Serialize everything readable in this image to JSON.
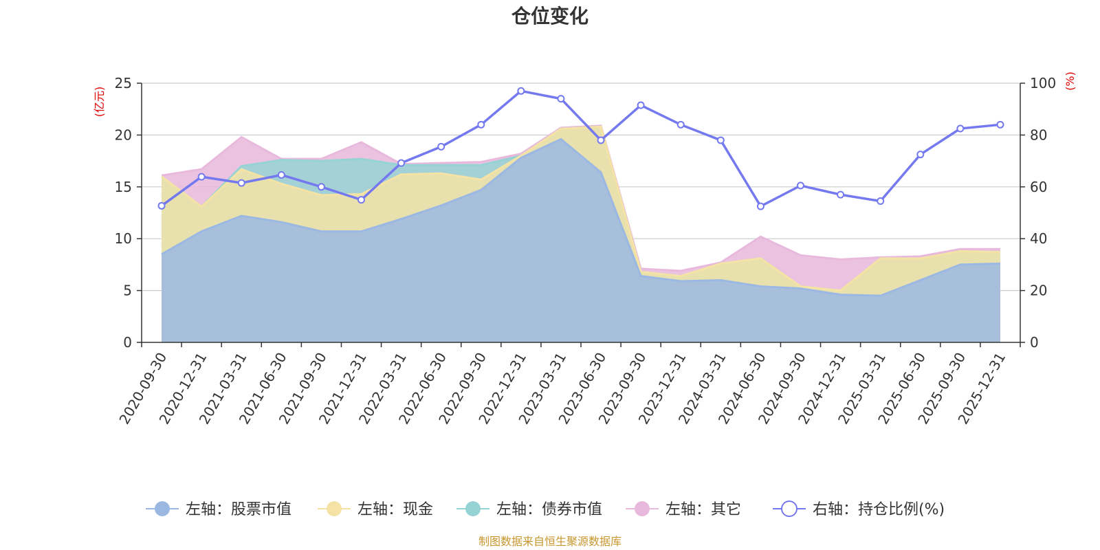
{
  "chart_data": {
    "type": "area",
    "title": "仓位变化",
    "left_axis_unit": "(亿元)",
    "right_axis_unit": "(%)",
    "categories": [
      "2020-09-30",
      "2020-12-31",
      "2021-03-31",
      "2021-06-30",
      "2021-09-30",
      "2021-12-31",
      "2022-03-31",
      "2022-06-30",
      "2022-09-30",
      "2022-12-31",
      "2023-03-31",
      "2023-06-30",
      "2023-09-30",
      "2023-12-31",
      "2024-03-31",
      "2024-06-30",
      "2024-09-30",
      "2024-12-31",
      "2025-03-31",
      "2025-06-30",
      "2025-09-30",
      "2025-12-31"
    ],
    "left_ylim": [
      0,
      25
    ],
    "left_ticks": [
      0,
      5,
      10,
      15,
      20,
      25
    ],
    "right_ylim": [
      0,
      100
    ],
    "right_ticks": [
      0,
      20,
      40,
      60,
      80,
      100
    ],
    "series": [
      {
        "name": "左轴：股票市值",
        "axis": "left",
        "kind": "stacked-area",
        "color": "#9bb8e3",
        "values": [
          8.5,
          10.7,
          12.2,
          11.6,
          10.7,
          10.7,
          11.9,
          13.2,
          14.7,
          17.8,
          19.6,
          16.4,
          6.4,
          5.9,
          6.0,
          5.4,
          5.2,
          4.6,
          4.5,
          6.0,
          7.5,
          7.6
        ]
      },
      {
        "name": "左轴：现金",
        "axis": "left",
        "kind": "stacked-area",
        "color": "#f5e3a6",
        "values": [
          7.5,
          2.4,
          4.5,
          3.7,
          3.5,
          3.6,
          4.3,
          3.1,
          1.0,
          0.2,
          1.0,
          4.4,
          0.4,
          0.5,
          1.6,
          2.7,
          0.2,
          0.4,
          3.6,
          2.1,
          1.3,
          1.1
        ]
      },
      {
        "name": "左轴：债券市值",
        "axis": "left",
        "kind": "stacked-area",
        "color": "#96d3d4",
        "values": [
          0,
          0,
          0.3,
          2.3,
          3.3,
          3.4,
          0.9,
          0.8,
          1.4,
          0,
          0,
          0,
          0,
          0,
          0,
          0,
          0,
          0,
          0,
          0,
          0,
          0
        ]
      },
      {
        "name": "左轴：其它",
        "axis": "left",
        "kind": "stacked-area",
        "color": "#e8b9dc",
        "values": [
          0.1,
          3.6,
          2.8,
          0.1,
          0.2,
          1.6,
          0.1,
          0.2,
          0.3,
          0.2,
          0.1,
          0.1,
          0.3,
          0.5,
          0.1,
          2.1,
          3.0,
          3.0,
          0.1,
          0.2,
          0.2,
          0.3
        ]
      },
      {
        "name": "右轴：持仓比例(%)",
        "axis": "right",
        "kind": "line",
        "color": "#7479ef",
        "values": [
          52.7,
          63.9,
          61.5,
          64.6,
          60.0,
          55.0,
          69.2,
          75.5,
          84.0,
          97.0,
          94.0,
          78.0,
          91.5,
          84.0,
          78.0,
          52.5,
          60.5,
          57.0,
          54.5,
          72.5,
          82.5,
          84.0
        ]
      }
    ],
    "legend_position": "bottom-center",
    "source_note": "制图数据来自恒生聚源数据库"
  }
}
